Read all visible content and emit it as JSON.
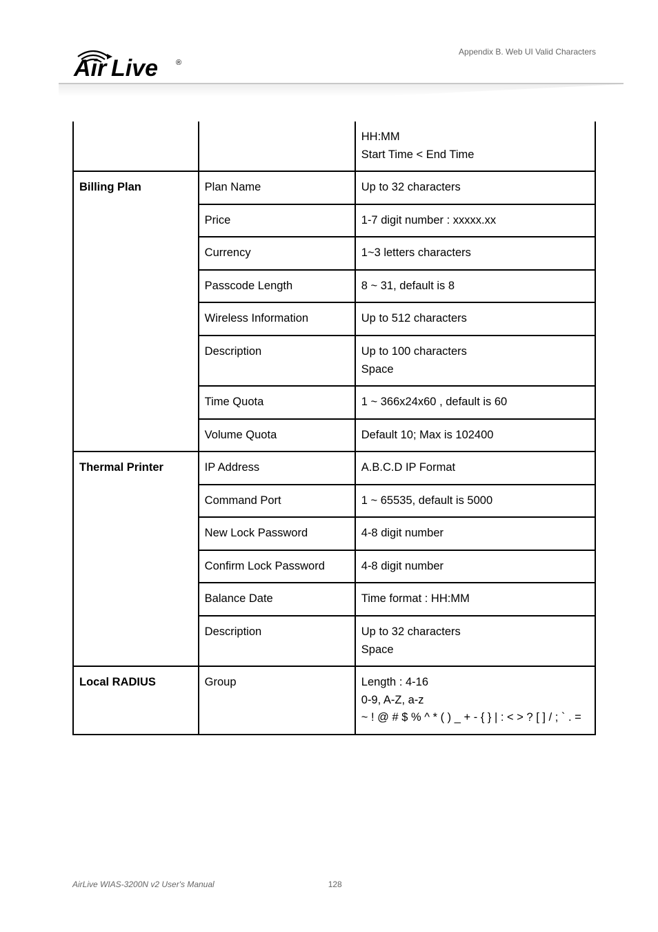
{
  "header": {
    "appendix_text": "Appendix B. Web UI Valid Characters",
    "logo_registered": "®",
    "logo_text_a": "Air",
    "logo_text_b": "Live"
  },
  "table": {
    "rows": [
      {
        "a": "",
        "b": "",
        "c": "HH:MM\nStart Time < End Time",
        "a_blank": true,
        "b_blank": true,
        "first": true
      },
      {
        "a": "Billing Plan",
        "b": "Plan Name",
        "c": "Up to 32 characters"
      },
      {
        "a": "",
        "b": "Price",
        "c": "1-7 digit number : xxxxx.xx",
        "a_blank": true
      },
      {
        "a": "",
        "b": "Currency",
        "c": "1~3 letters characters",
        "a_blank": true
      },
      {
        "a": "",
        "b": "Passcode Length",
        "c": "8 ~ 31, default is 8",
        "a_blank": true
      },
      {
        "a": "",
        "b": "Wireless Information",
        "c": "Up to 512 characters",
        "a_blank": true
      },
      {
        "a": "",
        "b": "Description",
        "c": "Up to 100 characters\nSpace",
        "a_blank": true
      },
      {
        "a": "",
        "b": "Time Quota",
        "c": "1 ~ 366x24x60 , default is 60",
        "a_blank": true
      },
      {
        "a": "",
        "b": "Volume Quota",
        "c": "Default 10; Max is 102400",
        "a_blank": true
      },
      {
        "a": "Thermal Printer",
        "b": "IP Address",
        "c": "A.B.C.D IP Format"
      },
      {
        "a": "",
        "b": "Command Port",
        "c": "1 ~ 65535, default is 5000",
        "a_blank": true
      },
      {
        "a": "",
        "b": "New Lock Password",
        "c": "4-8 digit number",
        "a_blank": true
      },
      {
        "a": "",
        "b": "Confirm Lock Password",
        "c": "4-8 digit number",
        "a_blank": true
      },
      {
        "a": "",
        "b": "Balance Date",
        "c": "Time format : HH:MM",
        "a_blank": true
      },
      {
        "a": "",
        "b": "Description",
        "c": "Up to 32 characters\nSpace",
        "a_blank": true
      },
      {
        "a": "Local RADIUS",
        "b": "Group",
        "c": "Length : 4-16\n0-9, A-Z, a-z\n~ ! @ # $ % ^ * ( ) _ + - { } | : < > ? [ ] / ; ` . ="
      }
    ]
  },
  "footer": {
    "manual": "AirLive WIAS-3200N v2 User's Manual",
    "page": "128"
  },
  "colors": {
    "border": "#000000",
    "text": "#000000",
    "header_text": "#666666",
    "divider": "#c8c8c8"
  }
}
